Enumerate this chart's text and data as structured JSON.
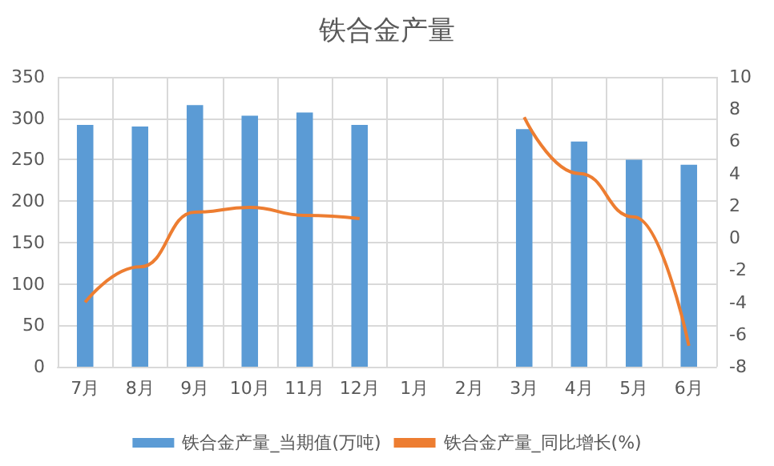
{
  "chart_data": {
    "type": "bar",
    "title": "铁合金产量",
    "categories": [
      "7月",
      "8月",
      "9月",
      "10月",
      "11月",
      "12月",
      "1月",
      "2月",
      "3月",
      "4月",
      "5月",
      "6月"
    ],
    "series": [
      {
        "name": "铁合金产量_当期值(万吨)",
        "color": "#5b9bd5",
        "values": [
          292,
          290,
          316,
          303,
          307,
          292,
          null,
          null,
          287,
          272,
          250,
          244
        ]
      },
      {
        "name": "铁合金产量_同比增长(%)",
        "type": "line",
        "axis": "y2",
        "color": "#ed7d31",
        "values": [
          -4.0,
          -1.8,
          1.6,
          1.9,
          1.4,
          1.2,
          null,
          null,
          7.5,
          4.0,
          1.3,
          -6.7
        ]
      }
    ],
    "ylim": [
      0,
      350
    ],
    "yticks": [
      0,
      50,
      100,
      150,
      200,
      250,
      300,
      350
    ],
    "y2lim": [
      -8,
      10
    ],
    "y2ticks": [
      -8,
      -6,
      -4,
      -2,
      0,
      2,
      4,
      6,
      8,
      10
    ],
    "grid": true,
    "legend": "bottom",
    "marker": "none",
    "line_style": "solid"
  }
}
